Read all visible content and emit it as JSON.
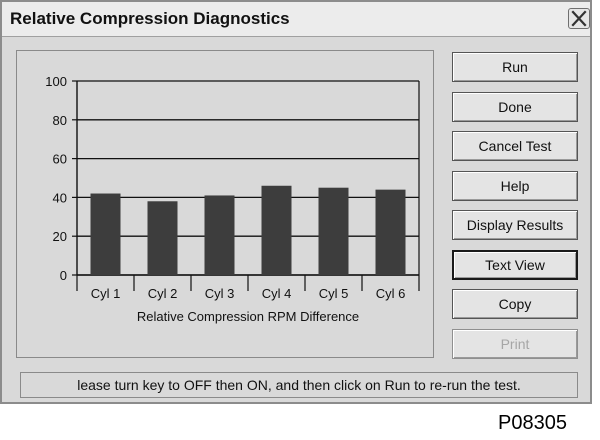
{
  "window": {
    "title": "Relative Compression Diagnostics",
    "close_icon": "close-icon"
  },
  "chart_data": {
    "type": "bar",
    "xlabel": "Relative Compression RPM Difference",
    "ylabel": "",
    "ylim": [
      0,
      100
    ],
    "yticks": [
      "0",
      "20",
      "40",
      "60",
      "80",
      "100"
    ],
    "grid": true,
    "categories": [
      "Cyl 1",
      "Cyl 2",
      "Cyl 3",
      "Cyl 4",
      "Cyl 5",
      "Cyl 6"
    ],
    "values": [
      42,
      38,
      41,
      46,
      45,
      44
    ],
    "bar_color": "#3d3d3d"
  },
  "buttons": [
    {
      "label": "Run",
      "state": "enabled"
    },
    {
      "label": "Done",
      "state": "enabled"
    },
    {
      "label": "Cancel Test",
      "state": "enabled"
    },
    {
      "label": "Help",
      "state": "enabled"
    },
    {
      "label": "Display Results",
      "state": "enabled"
    },
    {
      "label": "Text View",
      "state": "default"
    },
    {
      "label": "Copy",
      "state": "enabled"
    },
    {
      "label": "Print",
      "state": "disabled"
    }
  ],
  "status": {
    "message": "lease turn key to OFF then ON, and then click on Run to re-run the test."
  },
  "figure_ref": "P08305"
}
